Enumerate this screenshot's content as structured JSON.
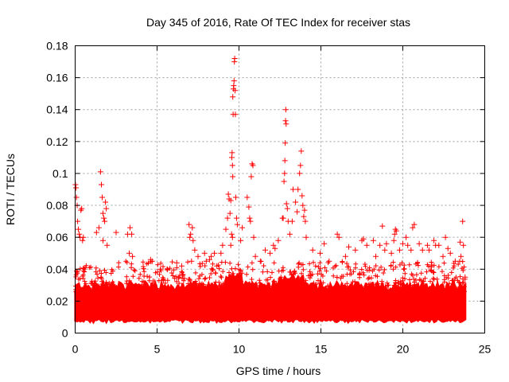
{
  "chart_data": {
    "type": "scatter",
    "title": "Day 345 of 2016, Rate Of TEC Index for receiver stas",
    "xlabel": "GPS time / hours",
    "ylabel": "ROTI / TECUs",
    "xlim": [
      0,
      25
    ],
    "ylim": [
      0,
      0.18
    ],
    "x_ticks": [
      0,
      5,
      10,
      15,
      20,
      25
    ],
    "x_tick_labels": [
      "0",
      "5",
      "10",
      "15",
      "20",
      "25"
    ],
    "y_ticks": [
      0,
      0.02,
      0.04,
      0.06,
      0.08,
      0.1,
      0.12,
      0.14,
      0.16,
      0.18
    ],
    "y_tick_labels": [
      "0",
      "0.02",
      "0.04",
      "0.06",
      "0.08",
      "0.1",
      "0.12",
      "0.14",
      "0.16",
      "0.18"
    ],
    "grid": true,
    "marker": "+",
    "color": "#ff0000",
    "series": [
      {
        "name": "ROTI",
        "points": [
          [
            0.02,
            0.093
          ],
          [
            0.05,
            0.091
          ],
          [
            0.08,
            0.085
          ],
          [
            0.12,
            0.08
          ],
          [
            0.15,
            0.07
          ],
          [
            0.2,
            0.065
          ],
          [
            0.25,
            0.062
          ],
          [
            0.3,
            0.06
          ],
          [
            0.35,
            0.077
          ],
          [
            0.4,
            0.078
          ],
          [
            0.45,
            0.058
          ],
          [
            0.5,
            0.06
          ],
          [
            1.3,
            0.063
          ],
          [
            1.45,
            0.066
          ],
          [
            1.55,
            0.101
          ],
          [
            1.6,
            0.093
          ],
          [
            1.65,
            0.085
          ],
          [
            1.7,
            0.075
          ],
          [
            1.75,
            0.072
          ],
          [
            1.8,
            0.07
          ],
          [
            1.85,
            0.082
          ],
          [
            1.9,
            0.078
          ],
          [
            1.7,
            0.058
          ],
          [
            1.95,
            0.055
          ],
          [
            2.5,
            0.063
          ],
          [
            3.2,
            0.062
          ],
          [
            3.35,
            0.066
          ],
          [
            3.45,
            0.062
          ],
          [
            3.3,
            0.05
          ],
          [
            3.5,
            0.048
          ],
          [
            4.6,
            0.046
          ],
          [
            4.7,
            0.045
          ],
          [
            5.2,
            0.04
          ],
          [
            6.2,
            0.044
          ],
          [
            6.5,
            0.042
          ],
          [
            7.1,
            0.045
          ],
          [
            7.2,
            0.058
          ],
          [
            7.3,
            0.052
          ],
          [
            7.5,
            0.048
          ],
          [
            7.9,
            0.05
          ],
          [
            8.0,
            0.045
          ],
          [
            6.95,
            0.068
          ],
          [
            7.15,
            0.066
          ],
          [
            7.05,
            0.062
          ],
          [
            7.0,
            0.06
          ],
          [
            8.2,
            0.046
          ],
          [
            8.3,
            0.048
          ],
          [
            8.5,
            0.05
          ],
          [
            8.65,
            0.042
          ],
          [
            8.9,
            0.05
          ],
          [
            9.0,
            0.055
          ],
          [
            9.2,
            0.065
          ],
          [
            9.3,
            0.072
          ],
          [
            9.35,
            0.087
          ],
          [
            9.4,
            0.084
          ],
          [
            9.45,
            0.075
          ],
          [
            9.5,
            0.083
          ],
          [
            9.55,
            0.062
          ],
          [
            9.6,
            0.06
          ],
          [
            9.5,
            0.055
          ],
          [
            9.56,
            0.11
          ],
          [
            9.58,
            0.113
          ],
          [
            9.6,
            0.105
          ],
          [
            9.62,
            0.098
          ],
          [
            9.62,
            0.148
          ],
          [
            9.64,
            0.137
          ],
          [
            9.66,
            0.153
          ],
          [
            9.68,
            0.155
          ],
          [
            9.7,
            0.158
          ],
          [
            9.72,
            0.17
          ],
          [
            9.74,
            0.172
          ],
          [
            9.76,
            0.152
          ],
          [
            9.78,
            0.137
          ],
          [
            9.8,
            0.085
          ],
          [
            9.85,
            0.072
          ],
          [
            9.9,
            0.068
          ],
          [
            10.1,
            0.058
          ],
          [
            10.2,
            0.066
          ],
          [
            10.5,
            0.085
          ],
          [
            10.6,
            0.079
          ],
          [
            10.65,
            0.072
          ],
          [
            10.7,
            0.07
          ],
          [
            10.75,
            0.098
          ],
          [
            10.8,
            0.106
          ],
          [
            10.85,
            0.105
          ],
          [
            10.9,
            0.06
          ],
          [
            11.0,
            0.048
          ],
          [
            11.3,
            0.045
          ],
          [
            11.6,
            0.052
          ],
          [
            11.9,
            0.05
          ],
          [
            12.1,
            0.055
          ],
          [
            12.2,
            0.053
          ],
          [
            12.4,
            0.058
          ],
          [
            12.65,
            0.072
          ],
          [
            12.7,
            0.072
          ],
          [
            12.75,
            0.095
          ],
          [
            12.78,
            0.1
          ],
          [
            12.8,
            0.108
          ],
          [
            12.82,
            0.119
          ],
          [
            12.84,
            0.133
          ],
          [
            12.86,
            0.14
          ],
          [
            12.88,
            0.131
          ],
          [
            12.9,
            0.081
          ],
          [
            12.95,
            0.078
          ],
          [
            13.0,
            0.07
          ],
          [
            13.1,
            0.062
          ],
          [
            13.25,
            0.07
          ],
          [
            13.3,
            0.09
          ],
          [
            13.45,
            0.082
          ],
          [
            13.55,
            0.076
          ],
          [
            13.6,
            0.09
          ],
          [
            13.7,
            0.1
          ],
          [
            13.75,
            0.105
          ],
          [
            13.8,
            0.114
          ],
          [
            13.85,
            0.086
          ],
          [
            13.9,
            0.08
          ],
          [
            13.95,
            0.073
          ],
          [
            14.0,
            0.077
          ],
          [
            14.05,
            0.07
          ],
          [
            14.1,
            0.06
          ],
          [
            14.5,
            0.052
          ],
          [
            14.95,
            0.05
          ],
          [
            15.2,
            0.056
          ],
          [
            15.5,
            0.045
          ],
          [
            16.0,
            0.062
          ],
          [
            16.1,
            0.06
          ],
          [
            16.5,
            0.048
          ],
          [
            16.7,
            0.054
          ],
          [
            17.1,
            0.052
          ],
          [
            17.5,
            0.058
          ],
          [
            17.6,
            0.059
          ],
          [
            17.8,
            0.055
          ],
          [
            18.2,
            0.058
          ],
          [
            18.35,
            0.048
          ],
          [
            18.6,
            0.055
          ],
          [
            18.75,
            0.067
          ],
          [
            18.9,
            0.052
          ],
          [
            19.0,
            0.056
          ],
          [
            19.3,
            0.05
          ],
          [
            19.45,
            0.058
          ],
          [
            19.5,
            0.062
          ],
          [
            19.55,
            0.065
          ],
          [
            19.6,
            0.064
          ],
          [
            19.8,
            0.052
          ],
          [
            20.0,
            0.056
          ],
          [
            20.2,
            0.06
          ],
          [
            20.3,
            0.055
          ],
          [
            20.5,
            0.052
          ],
          [
            20.6,
            0.066
          ],
          [
            20.7,
            0.068
          ],
          [
            21.0,
            0.056
          ],
          [
            21.2,
            0.052
          ],
          [
            21.5,
            0.055
          ],
          [
            21.6,
            0.052
          ],
          [
            21.9,
            0.058
          ],
          [
            22.0,
            0.055
          ],
          [
            22.2,
            0.055
          ],
          [
            22.45,
            0.048
          ],
          [
            22.6,
            0.06
          ],
          [
            22.75,
            0.053
          ],
          [
            22.9,
            0.05
          ],
          [
            23.2,
            0.045
          ],
          [
            23.5,
            0.057
          ],
          [
            23.55,
            0.048
          ],
          [
            23.65,
            0.07
          ],
          [
            23.7,
            0.055
          ],
          [
            23.8,
            0.035
          ]
        ]
      }
    ]
  }
}
